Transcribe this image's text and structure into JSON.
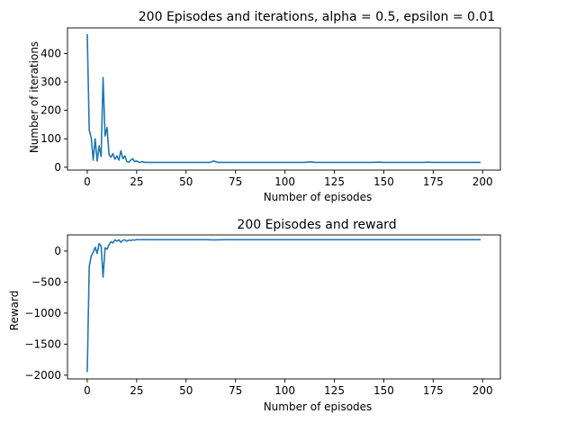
{
  "chart_data": [
    {
      "type": "line",
      "title": "200 Episodes and iterations, alpha = 0.5, epsilon = 0.01",
      "xlabel": "Number of episodes",
      "ylabel": "Number of iterations",
      "xlim": [
        -10,
        209
      ],
      "ylim": [
        -10,
        490
      ],
      "xticks": [
        0,
        25,
        50,
        75,
        100,
        125,
        150,
        175,
        200
      ],
      "yticks": [
        0,
        100,
        200,
        300,
        400
      ],
      "grid": false,
      "color": "#1f77b4",
      "series": [
        {
          "x": [
            0,
            1,
            2,
            3,
            4,
            5,
            6,
            7,
            8,
            9,
            10,
            11,
            12,
            13,
            14,
            15,
            16,
            17,
            18,
            19,
            20,
            21,
            22,
            23,
            24,
            25,
            26,
            27,
            28,
            29,
            30,
            32,
            35,
            40,
            45,
            50,
            55,
            60,
            62,
            64,
            66,
            70,
            75,
            80,
            85,
            90,
            95,
            100,
            105,
            110,
            113,
            115,
            117,
            120,
            125,
            130,
            135,
            140,
            145,
            148,
            150,
            155,
            160,
            165,
            170,
            172,
            175,
            180,
            185,
            190,
            195,
            199
          ],
          "y": [
            468,
            130,
            105,
            25,
            100,
            22,
            75,
            38,
            315,
            110,
            140,
            45,
            35,
            48,
            28,
            40,
            25,
            58,
            30,
            40,
            20,
            18,
            25,
            30,
            20,
            22,
            18,
            18,
            20,
            17,
            17,
            17,
            17,
            17,
            17,
            17,
            17,
            17,
            17,
            22,
            17,
            17,
            17,
            17,
            17,
            17,
            17,
            17,
            17,
            17,
            19,
            17,
            17,
            17,
            17,
            17,
            17,
            17,
            17,
            18,
            17,
            17,
            17,
            17,
            17,
            18,
            17,
            17,
            17,
            17,
            17,
            17
          ]
        }
      ]
    },
    {
      "type": "line",
      "title": "200 Episodes and reward",
      "xlabel": "Number of episodes",
      "ylabel": "Reward",
      "xlim": [
        -10,
        209
      ],
      "ylim": [
        -2060,
        260
      ],
      "xticks": [
        0,
        25,
        50,
        75,
        100,
        125,
        150,
        175,
        200
      ],
      "yticks": [
        0,
        -500,
        -1000,
        -1500,
        -2000
      ],
      "grid": false,
      "color": "#1f77b4",
      "series": [
        {
          "x": [
            0,
            1,
            2,
            3,
            4,
            5,
            6,
            7,
            8,
            9,
            10,
            11,
            12,
            13,
            14,
            15,
            16,
            17,
            18,
            19,
            20,
            21,
            22,
            23,
            24,
            25,
            26,
            28,
            30,
            35,
            40,
            50,
            60,
            64,
            70,
            80,
            90,
            100,
            110,
            120,
            130,
            140,
            150,
            160,
            170,
            180,
            190,
            199
          ],
          "y": [
            -1950,
            -250,
            -80,
            -20,
            60,
            -40,
            120,
            80,
            -420,
            50,
            30,
            100,
            150,
            130,
            180,
            160,
            180,
            140,
            175,
            180,
            160,
            175,
            170,
            180,
            175,
            185,
            182,
            183,
            183,
            183,
            183,
            183,
            183,
            180,
            183,
            183,
            183,
            183,
            183,
            183,
            183,
            183,
            183,
            183,
            183,
            183,
            183,
            183
          ]
        }
      ]
    }
  ]
}
